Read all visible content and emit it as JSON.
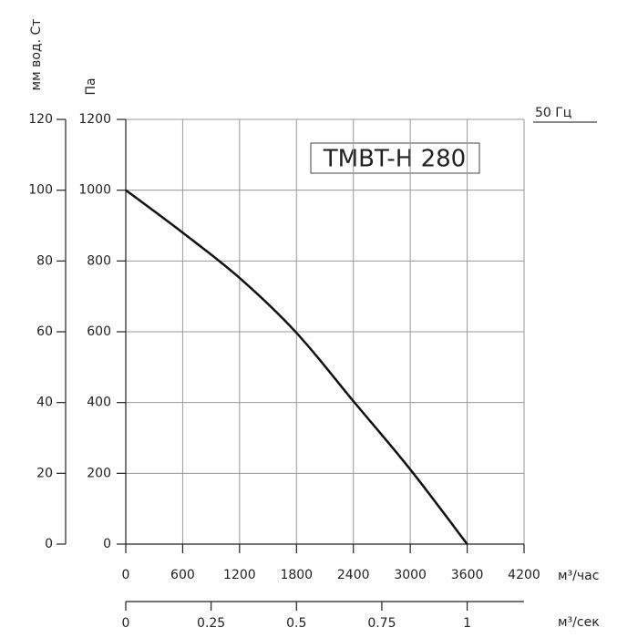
{
  "chart_data": {
    "type": "line",
    "title": "TMBT-H 280",
    "x": [
      0,
      600,
      1200,
      1800,
      2400,
      3000,
      3600
    ],
    "series": [
      {
        "name": "50 Гц",
        "color": "#111111",
        "values": [
          1000,
          880,
          752,
          597,
          404,
          211,
          0
        ]
      }
    ],
    "xlim": [
      0,
      4200
    ],
    "xticks": [
      0,
      600,
      1200,
      1800,
      2400,
      3000,
      3600,
      4200
    ],
    "xlabel": "м³/час",
    "x2lim": [
      0,
      1.1667
    ],
    "x2ticks": [
      0,
      0.25,
      0.5,
      0.75,
      1
    ],
    "x2label": "м³/сек",
    "ylim": [
      0,
      1200
    ],
    "yticks": [
      0,
      200,
      400,
      600,
      800,
      1000,
      1200
    ],
    "ylabel": "Па",
    "y2lim": [
      0,
      120
    ],
    "y2ticks": [
      0,
      20,
      40,
      60,
      80,
      100,
      120
    ],
    "y2label": "мм вод. Ст",
    "grid": true
  }
}
